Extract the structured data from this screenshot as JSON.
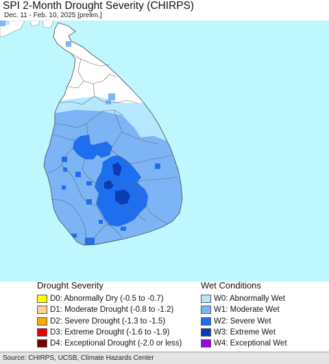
{
  "title": "SPI 2-Month Drought Severity (CHIRPS)",
  "subtitle": "Dec. 11 - Feb. 10, 2025 [prelim.]",
  "colors": {
    "ocean": "#bff7ff",
    "land_normal": "#ffffff",
    "w0": "#b5e8ff",
    "w1": "#7db4f5",
    "w2": "#1e6ef0",
    "w3": "#0a3cb4",
    "w4": "#9b00e6",
    "boundary": "#666666"
  },
  "legend_drought": {
    "heading": "Drought Severity",
    "items": [
      {
        "code": "D0",
        "label": "D0: Abnormally Dry (-0.5 to -0.7)",
        "color": "#ffff00"
      },
      {
        "code": "D1",
        "label": "D1: Moderate Drought (-0.8 to -1.2)",
        "color": "#ffd38c"
      },
      {
        "code": "D2",
        "label": "D2: Severe Drought (-1.3 to -1.5)",
        "color": "#ffaa00"
      },
      {
        "code": "D3",
        "label": "D3: Extreme Drought (-1.6 to -1.9)",
        "color": "#e60000"
      },
      {
        "code": "D4",
        "label": "D4: Exceptional Drought (-2.0 or less)",
        "color": "#730000"
      }
    ]
  },
  "legend_wet": {
    "heading": "Wet Conditions",
    "items": [
      {
        "code": "W0",
        "label": "W0: Abnormally Wet",
        "color": "#b5e8ff"
      },
      {
        "code": "W1",
        "label": "W1: Moderate Wet",
        "color": "#7db4f5"
      },
      {
        "code": "W2",
        "label": "W2: Severe Wet",
        "color": "#1e6ef0"
      },
      {
        "code": "W3",
        "label": "W3: Extreme Wet",
        "color": "#0a3cb4"
      },
      {
        "code": "W4",
        "label": "W4: Exceptional Wet",
        "color": "#9b00e6"
      }
    ]
  },
  "source": "Source: CHIRPS, UCSB, Climate Hazards Center"
}
